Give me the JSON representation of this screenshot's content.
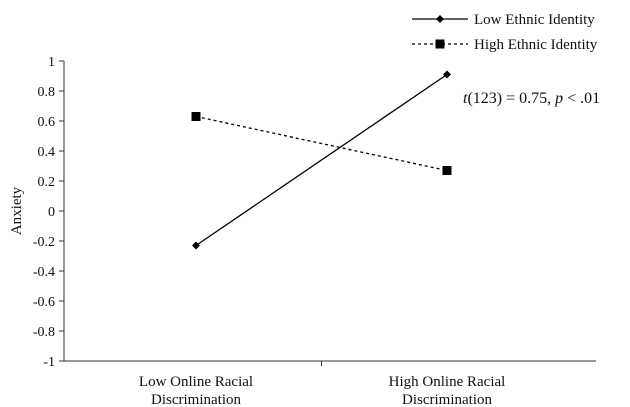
{
  "chart_data": {
    "type": "line",
    "categories": [
      [
        "Low Online Racial",
        "Discrimination"
      ],
      [
        "High Online Racial",
        "Discrimination"
      ]
    ],
    "series": [
      {
        "name": "Low Ethnic Identity",
        "values": [
          -0.23,
          0.91
        ],
        "line": "solid",
        "marker": "diamond",
        "color": "#000000"
      },
      {
        "name": "High Ethnic Identity",
        "values": [
          0.63,
          0.27
        ],
        "line": "dashed",
        "marker": "square",
        "color": "#000000"
      }
    ],
    "ylabel": "Anxiety",
    "xlabel": "",
    "title": "",
    "ylim": [
      -1,
      1
    ],
    "yticks": [
      "1",
      "0.8",
      "0.6",
      "0.4",
      "0.2",
      "0",
      "-0.2",
      "-0.4",
      "-0.6",
      "-0.8",
      "-1"
    ],
    "ytick_values": [
      1,
      0.8,
      0.6,
      0.4,
      0.2,
      0,
      -0.2,
      -0.4,
      -0.6,
      -0.8,
      -1
    ],
    "grid": false,
    "legend_position": "top-right",
    "annotation": {
      "italic_t": "t",
      "stat": "(123) = 0.75, ",
      "italic_p": "p",
      "rest": " < .01"
    }
  }
}
